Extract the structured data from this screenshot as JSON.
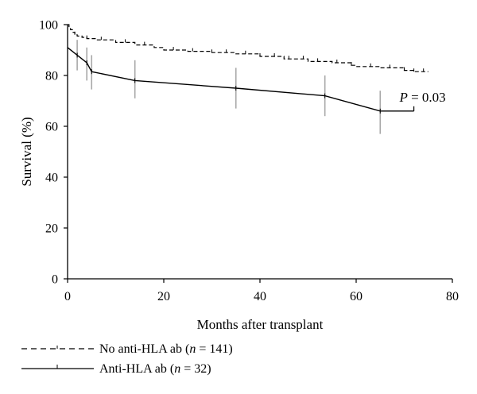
{
  "chart_data": {
    "type": "line",
    "xlabel": "Months after transplant",
    "ylabel": "Survival (%)",
    "xlim": [
      0,
      80
    ],
    "ylim": [
      0,
      100
    ],
    "x_ticks": [
      0,
      20,
      40,
      60,
      80
    ],
    "y_ticks": [
      0,
      20,
      40,
      60,
      80,
      100
    ],
    "grid": false,
    "legend_position": "bottom-left",
    "annotation": {
      "prefix": "P",
      "text": " = 0.03",
      "x": 69,
      "y": 69
    },
    "series": [
      {
        "name": "No anti-HLA ab",
        "n_label": "n",
        "n_value": "= 141",
        "style": "dashed",
        "color": "#000000",
        "points": [
          [
            0,
            100
          ],
          [
            0.3,
            99
          ],
          [
            0.6,
            98
          ],
          [
            1,
            97
          ],
          [
            1.5,
            96
          ],
          [
            2,
            95.5
          ],
          [
            3,
            95
          ],
          [
            4,
            94.5
          ],
          [
            6,
            94
          ],
          [
            10,
            93
          ],
          [
            14,
            92
          ],
          [
            18,
            91
          ],
          [
            20,
            90
          ],
          [
            25,
            89.5
          ],
          [
            30,
            89
          ],
          [
            35,
            88.5
          ],
          [
            40,
            87.5
          ],
          [
            45,
            86.5
          ],
          [
            50,
            85.5
          ],
          [
            55,
            85
          ],
          [
            59,
            84
          ],
          [
            60,
            83.5
          ],
          [
            65,
            83
          ],
          [
            70,
            82
          ],
          [
            72,
            81.5
          ],
          [
            75,
            81.5
          ]
        ],
        "censor_x": [
          1.5,
          4,
          7,
          12,
          16,
          22,
          26,
          30,
          33,
          37,
          40,
          43,
          46,
          49,
          52,
          56,
          59,
          63,
          67,
          70,
          72,
          74
        ]
      },
      {
        "name": "Anti-HLA ab",
        "n_label": "n",
        "n_value": "= 32",
        "style": "solid",
        "color": "#000000",
        "points": [
          [
            0,
            91
          ],
          [
            2,
            88
          ],
          [
            4,
            85
          ],
          [
            5,
            81.5
          ],
          [
            14,
            78
          ],
          [
            35,
            75
          ],
          [
            53.5,
            72
          ],
          [
            65,
            66
          ],
          [
            72,
            66
          ]
        ],
        "censor_x": [
          72
        ],
        "error_bars": [
          {
            "x": 2,
            "low": 82,
            "high": 94
          },
          {
            "x": 4,
            "low": 78,
            "high": 91
          },
          {
            "x": 5,
            "low": 74.5,
            "high": 88
          },
          {
            "x": 14,
            "low": 71,
            "high": 86
          },
          {
            "x": 35,
            "low": 67,
            "high": 83
          },
          {
            "x": 53.5,
            "low": 64,
            "high": 80
          },
          {
            "x": 65,
            "low": 57,
            "high": 74
          }
        ]
      }
    ]
  }
}
